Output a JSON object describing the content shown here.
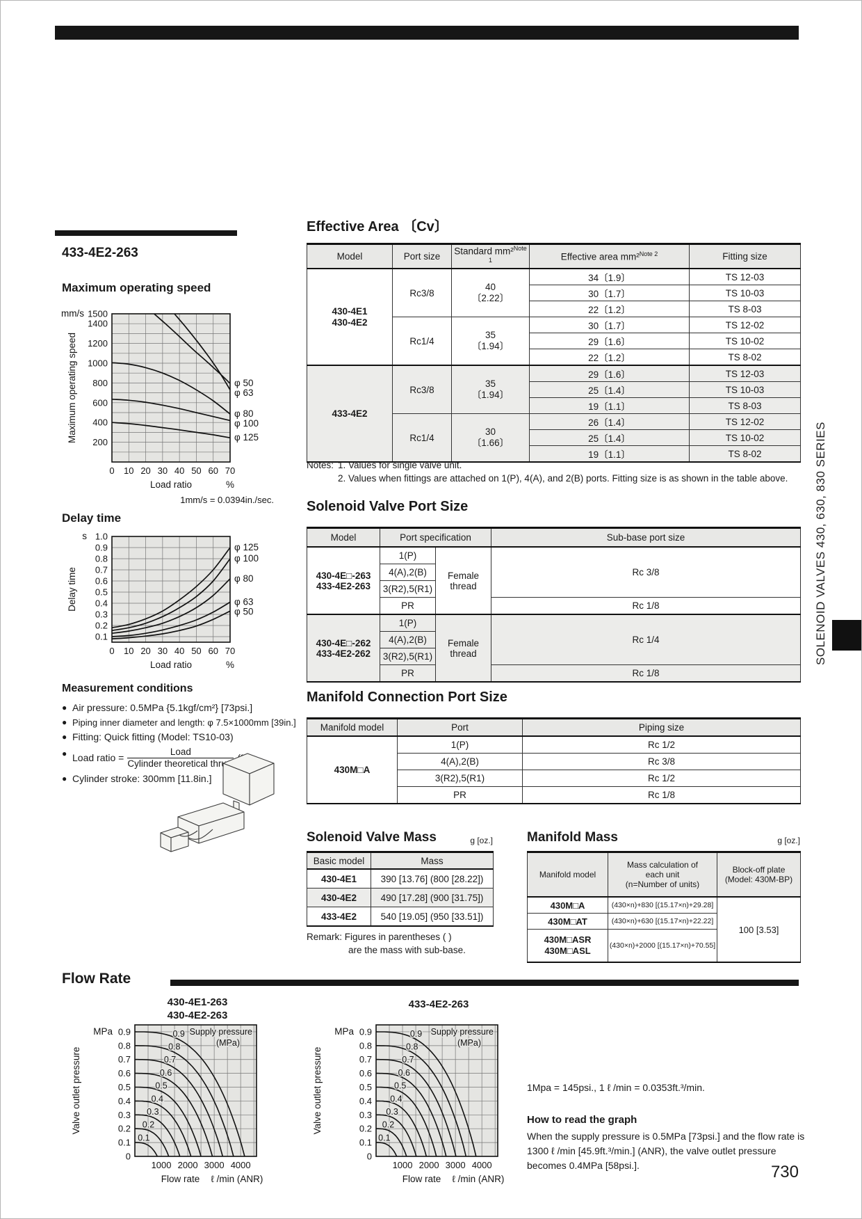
{
  "page": {
    "number": "730",
    "side_tab": "SOLENOID VALVES 430, 630, 830 SERIES",
    "model_title": "433-4E2-263"
  },
  "sections": {
    "max_speed": "Maximum operating speed",
    "delay": "Delay time",
    "measurement": "Measurement conditions",
    "effective_area": "Effective Area 〔Cv〕",
    "port_size": "Solenoid Valve Port Size",
    "manifold_port": "Manifold Connection Port Size",
    "valve_mass": "Solenoid Valve Mass",
    "manifold_mass": "Manifold Mass",
    "flow": "Flow Rate"
  },
  "measurement": {
    "bullets": [
      "Air pressure: 0.5MPa {5.1kgf/cm²} [73psi.]",
      "Piping inner diameter and length: φ 7.5×1000mm [39in.]",
      "Fitting: Quick fitting (Model: TS10-03)"
    ],
    "load_ratio_prefix": "Load ratio =",
    "load_ratio_num": "Load",
    "load_ratio_den": "Cylinder theoretical thrust",
    "load_ratio_suffix": "(%)",
    "last_bullet": "Cylinder stroke: 300mm [11.8in.]"
  },
  "effective_area": {
    "headers": [
      {
        "t": "Model"
      },
      {
        "t": "Port size"
      },
      {
        "t": "Standard mm²",
        "n": "Note 1"
      },
      {
        "t": "Effective area mm²",
        "n": "Note 2"
      },
      {
        "t": "Fitting size"
      }
    ],
    "groups": [
      {
        "model": "430-4E1\n430-4E2",
        "pg": [
          {
            "port": "Rc3/8",
            "std": "40\n〔2.22〕",
            "rows": [
              [
                "34〔1.9〕",
                "TS 12-03"
              ],
              [
                "30〔1.7〕",
                "TS 10-03"
              ],
              [
                "22〔1.2〕",
                "TS 8-03"
              ]
            ]
          },
          {
            "port": "Rc1/4",
            "std": "35\n〔1.94〕",
            "rows": [
              [
                "30〔1.7〕",
                "TS 12-02"
              ],
              [
                "29〔1.6〕",
                "TS 10-02"
              ],
              [
                "22〔1.2〕",
                "TS 8-02"
              ]
            ]
          }
        ]
      },
      {
        "model": "433-4E2",
        "pg": [
          {
            "port": "Rc3/8",
            "std": "35\n〔1.94〕",
            "rows": [
              [
                "29〔1.6〕",
                "TS 12-03"
              ],
              [
                "25〔1.4〕",
                "TS 10-03"
              ],
              [
                "19〔1.1〕",
                "TS 8-03"
              ]
            ]
          },
          {
            "port": "Rc1/4",
            "std": "30\n〔1.66〕",
            "rows": [
              [
                "26〔1.4〕",
                "TS 12-02"
              ],
              [
                "25〔1.4〕",
                "TS 10-02"
              ],
              [
                "19〔1.1〕",
                "TS 8-02"
              ]
            ]
          }
        ]
      }
    ],
    "notes_label": "Notes:",
    "note1": "1. Values for single valve unit.",
    "note2": "2. Values when fittings are attached on 1(P), 4(A), and 2(B) ports. Fitting size is as shown in the table above."
  },
  "port_size": {
    "headers": [
      "Model",
      "Port specification",
      "Sub-base port size"
    ],
    "groups": [
      {
        "model": "430-4E□-263\n433-4E2-263",
        "ports": [
          "1(P)",
          "4(A),2(B)",
          "3(R2),5(R1)",
          "PR"
        ],
        "thread": "Female thread",
        "size_main": "Rc 3/8",
        "size_pr": "Rc 1/8"
      },
      {
        "model": "430-4E□-262\n433-4E2-262",
        "ports": [
          "1(P)",
          "4(A),2(B)",
          "3(R2),5(R1)",
          "PR"
        ],
        "thread": "Female thread",
        "size_main": "Rc 1/4",
        "size_pr": "Rc 1/8"
      }
    ]
  },
  "manifold_port": {
    "headers": [
      "Manifold model",
      "Port",
      "Piping size"
    ],
    "model": "430M□A",
    "rows": [
      [
        "1(P)",
        "Rc 1/2"
      ],
      [
        "4(A),2(B)",
        "Rc 3/8"
      ],
      [
        "3(R2),5(R1)",
        "Rc 1/2"
      ],
      [
        "PR",
        "Rc 1/8"
      ]
    ]
  },
  "valve_mass": {
    "unit": "g [oz.]",
    "headers": [
      "Basic model",
      "Mass"
    ],
    "rows": [
      [
        "430-4E1",
        "390 [13.76] (800 [28.22])"
      ],
      [
        "430-4E2",
        "490 [17.28] (900 [31.75])"
      ],
      [
        "433-4E2",
        "540 [19.05] (950 [33.51])"
      ]
    ],
    "remark_line1": "Remark: Figures in parentheses (  )",
    "remark_line2": "are the mass with sub-base."
  },
  "manifold_mass": {
    "unit": "g [oz.]",
    "headers": [
      "Manifold model",
      "Mass calculation of\neach unit\n(n=Number of units)",
      "Block-off plate\n(Model: 430M-BP)"
    ],
    "rows": [
      [
        "430M□A",
        "(430×n)+830 [(15.17×n)+29.28]"
      ],
      [
        "430M□AT",
        "(430×n)+630 [(15.17×n)+22.22]"
      ],
      [
        "430M□ASR\n430M□ASL",
        "(430×n)+2000 [(15.17×n)+70.55]"
      ]
    ],
    "block_off": "100 [3.53]"
  },
  "flow": {
    "chart1_title": "430-4E1-263\n430-4E2-263",
    "chart2_title": "433-4E2-263",
    "conversion": "1Mpa = 145psi., 1 ℓ /min = 0.0353ft.³/min.",
    "how_heading": "How to read the graph",
    "how_body": "When the supply pressure is 0.5MPa [73psi.] and the flow rate is 1300 ℓ /min [45.9ft.³/min.] (ANR), the valve outlet pressure becomes 0.4MPa [58psi.]."
  },
  "chart_data": [
    {
      "id": "max_speed",
      "type": "line",
      "title": "Maximum operating speed",
      "xlabel": "Load ratio",
      "x_unit": "%",
      "ylabel": "Maximum operating speed",
      "y_unit": "mm/s",
      "note": "1mm/s = 0.0394in./sec.",
      "xlim": [
        0,
        70
      ],
      "ylim": [
        0,
        1500
      ],
      "grid": [
        10,
        100
      ],
      "xticks": [
        [
          0,
          "0"
        ],
        [
          10,
          "10"
        ],
        [
          20,
          "20"
        ],
        [
          30,
          "30"
        ],
        [
          40,
          "40"
        ],
        [
          50,
          "50"
        ],
        [
          60,
          "60"
        ],
        [
          70,
          "70"
        ]
      ],
      "yticks": [
        [
          1500,
          "1500"
        ],
        [
          1400,
          "1400"
        ],
        [
          1200,
          "1200"
        ],
        [
          1000,
          "1000"
        ],
        [
          800,
          "800"
        ],
        [
          600,
          "600"
        ],
        [
          400,
          "400"
        ],
        [
          200,
          "200"
        ]
      ],
      "series": [
        {
          "name": "φ 50",
          "points": [
            [
              25,
              1500
            ],
            [
              32,
              1395
            ],
            [
              40,
              1270
            ],
            [
              48,
              1140
            ],
            [
              56,
              1020
            ],
            [
              63,
              910
            ],
            [
              70,
              795
            ]
          ]
        },
        {
          "name": "φ 63",
          "points": [
            [
              37,
              1500
            ],
            [
              44,
              1360
            ],
            [
              51,
              1210
            ],
            [
              58,
              1050
            ],
            [
              64,
              900
            ],
            [
              70,
              730
            ]
          ]
        },
        {
          "name": "φ 80",
          "points": [
            [
              0,
              1005
            ],
            [
              10,
              990
            ],
            [
              20,
              955
            ],
            [
              30,
              900
            ],
            [
              40,
              825
            ],
            [
              50,
              730
            ],
            [
              60,
              620
            ],
            [
              70,
              485
            ]
          ]
        },
        {
          "name": "φ 100",
          "points": [
            [
              0,
              635
            ],
            [
              10,
              625
            ],
            [
              20,
              605
            ],
            [
              30,
              575
            ],
            [
              40,
              540
            ],
            [
              50,
              500
            ],
            [
              60,
              460
            ],
            [
              70,
              420
            ]
          ]
        },
        {
          "name": "φ 125",
          "points": [
            [
              0,
              400
            ],
            [
              10,
              388
            ],
            [
              20,
              370
            ],
            [
              30,
              348
            ],
            [
              40,
              325
            ],
            [
              50,
              300
            ],
            [
              60,
              275
            ],
            [
              70,
              245
            ]
          ]
        }
      ]
    },
    {
      "id": "delay",
      "type": "line",
      "title": "Delay time",
      "xlabel": "Load ratio",
      "x_unit": "%",
      "ylabel": "Delay time",
      "y_unit": "s",
      "xlim": [
        0,
        70
      ],
      "ylim": [
        0.05,
        1.0
      ],
      "grid": [
        10,
        0.1
      ],
      "xticks": [
        [
          0,
          "0"
        ],
        [
          10,
          "10"
        ],
        [
          20,
          "20"
        ],
        [
          30,
          "30"
        ],
        [
          40,
          "40"
        ],
        [
          50,
          "50"
        ],
        [
          60,
          "60"
        ],
        [
          70,
          "70"
        ]
      ],
      "yticks": [
        [
          1.0,
          "1.0"
        ],
        [
          0.9,
          "0.9"
        ],
        [
          0.8,
          "0.8"
        ],
        [
          0.7,
          "0.7"
        ],
        [
          0.6,
          "0.6"
        ],
        [
          0.5,
          "0.5"
        ],
        [
          0.4,
          "0.4"
        ],
        [
          0.3,
          "0.3"
        ],
        [
          0.2,
          "0.2"
        ],
        [
          0.1,
          "0.1"
        ]
      ],
      "series": [
        {
          "name": "φ 125",
          "points": [
            [
              0,
              0.18
            ],
            [
              10,
              0.21
            ],
            [
              20,
              0.26
            ],
            [
              30,
              0.33
            ],
            [
              40,
              0.43
            ],
            [
              50,
              0.55
            ],
            [
              60,
              0.7
            ],
            [
              70,
              0.9
            ]
          ]
        },
        {
          "name": "φ 100",
          "points": [
            [
              0,
              0.155
            ],
            [
              10,
              0.18
            ],
            [
              20,
              0.22
            ],
            [
              30,
              0.28
            ],
            [
              40,
              0.36
            ],
            [
              50,
              0.46
            ],
            [
              60,
              0.6
            ],
            [
              70,
              0.8
            ]
          ]
        },
        {
          "name": "φ 80",
          "points": [
            [
              0,
              0.13
            ],
            [
              10,
              0.15
            ],
            [
              20,
              0.18
            ],
            [
              30,
              0.22
            ],
            [
              40,
              0.28
            ],
            [
              50,
              0.36
            ],
            [
              60,
              0.47
            ],
            [
              70,
              0.62
            ]
          ]
        },
        {
          "name": "φ 63",
          "points": [
            [
              0,
              0.1
            ],
            [
              10,
              0.11
            ],
            [
              20,
              0.13
            ],
            [
              30,
              0.16
            ],
            [
              40,
              0.2
            ],
            [
              50,
              0.25
            ],
            [
              60,
              0.32
            ],
            [
              70,
              0.41
            ]
          ]
        },
        {
          "name": "φ 50",
          "points": [
            [
              0,
              0.08
            ],
            [
              10,
              0.09
            ],
            [
              20,
              0.105
            ],
            [
              30,
              0.125
            ],
            [
              40,
              0.155
            ],
            [
              50,
              0.195
            ],
            [
              60,
              0.255
            ],
            [
              70,
              0.33
            ]
          ]
        }
      ]
    },
    {
      "id": "flow_430",
      "type": "line",
      "title": "430-4E1-263 / 430-4E2-263",
      "xlabel": "Flow rate",
      "x_unit": "ℓ /min (ANR)",
      "ylabel": "Valve outlet pressure",
      "y_unit": "MPa",
      "annotation": [
        "Supply pressure",
        "(MPa)"
      ],
      "xlim": [
        0,
        4600
      ],
      "ylim": [
        0,
        0.95
      ],
      "grid": [
        500,
        0.1
      ],
      "xticks": [
        [
          1000,
          "1000"
        ],
        [
          2000,
          "2000"
        ],
        [
          3000,
          "3000"
        ],
        [
          4000,
          "4000"
        ]
      ],
      "yticks": [
        [
          0.9,
          "0.9"
        ],
        [
          0.8,
          "0.8"
        ],
        [
          0.7,
          "0.7"
        ],
        [
          0.6,
          "0.6"
        ],
        [
          0.5,
          "0.5"
        ],
        [
          0.4,
          "0.4"
        ],
        [
          0.3,
          "0.3"
        ],
        [
          0.2,
          "0.2"
        ],
        [
          0.1,
          "0.1"
        ],
        [
          0,
          "0"
        ]
      ],
      "curves": [
        {
          "label": "0.9",
          "p": 0.9,
          "xi": 4150
        },
        {
          "label": "0.8",
          "p": 0.8,
          "xi": 3730
        },
        {
          "label": "0.7",
          "p": 0.7,
          "xi": 3320
        },
        {
          "label": "0.6",
          "p": 0.6,
          "xi": 2930
        },
        {
          "label": "0.5",
          "p": 0.5,
          "xi": 2500
        },
        {
          "label": "0.4",
          "p": 0.4,
          "xi": 2120
        },
        {
          "label": "0.3",
          "p": 0.3,
          "xi": 1700
        },
        {
          "label": "0.2",
          "p": 0.2,
          "xi": 1280
        },
        {
          "label": "0.1",
          "p": 0.1,
          "xi": 850
        }
      ]
    },
    {
      "id": "flow_433",
      "type": "line",
      "title": "433-4E2-263",
      "xlabel": "Flow rate",
      "x_unit": "ℓ /min (ANR)",
      "ylabel": "Valve outlet pressure",
      "y_unit": "MPa",
      "annotation": [
        "Supply pressure",
        "(MPa)"
      ],
      "xlim": [
        0,
        4600
      ],
      "ylim": [
        0,
        0.95
      ],
      "grid": [
        500,
        0.1
      ],
      "xticks": [
        [
          1000,
          "1000"
        ],
        [
          2000,
          "2000"
        ],
        [
          3000,
          "3000"
        ],
        [
          4000,
          "4000"
        ]
      ],
      "yticks": [
        [
          0.9,
          "0.9"
        ],
        [
          0.8,
          "0.8"
        ],
        [
          0.7,
          "0.7"
        ],
        [
          0.6,
          "0.6"
        ],
        [
          0.5,
          "0.5"
        ],
        [
          0.4,
          "0.4"
        ],
        [
          0.3,
          "0.3"
        ],
        [
          0.2,
          "0.2"
        ],
        [
          0.1,
          "0.1"
        ],
        [
          0,
          "0"
        ]
      ],
      "curves": [
        {
          "label": "0.9",
          "p": 0.9,
          "xi": 3780
        },
        {
          "label": "0.8",
          "p": 0.8,
          "xi": 3400
        },
        {
          "label": "0.7",
          "p": 0.7,
          "xi": 3020
        },
        {
          "label": "0.6",
          "p": 0.6,
          "xi": 2650
        },
        {
          "label": "0.5",
          "p": 0.5,
          "xi": 2280
        },
        {
          "label": "0.4",
          "p": 0.4,
          "xi": 1900
        },
        {
          "label": "0.3",
          "p": 0.3,
          "xi": 1520
        },
        {
          "label": "0.2",
          "p": 0.2,
          "xi": 1150
        },
        {
          "label": "0.1",
          "p": 0.1,
          "xi": 780
        }
      ]
    }
  ]
}
